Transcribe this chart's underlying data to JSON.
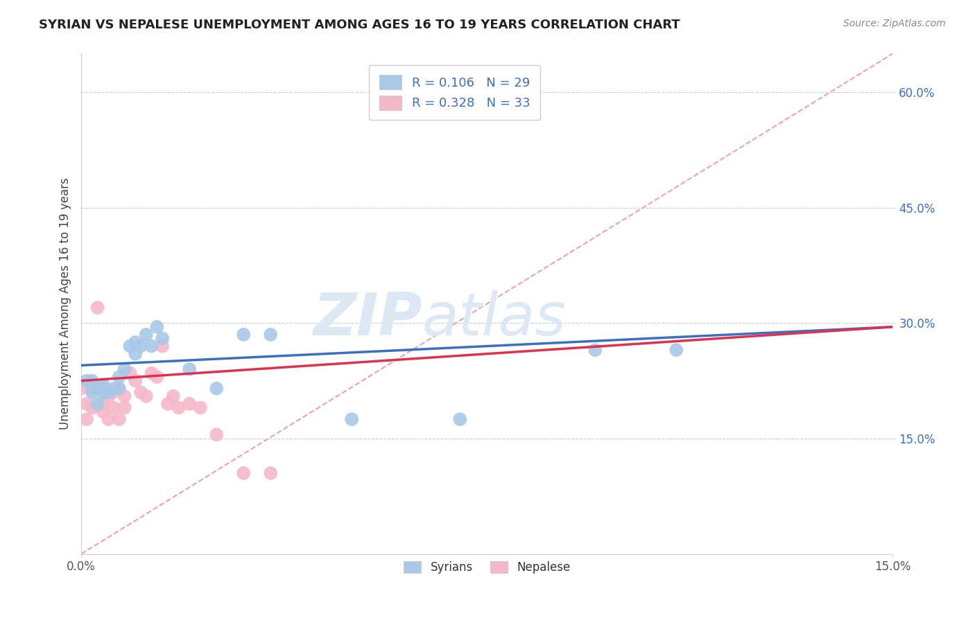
{
  "title": "SYRIAN VS NEPALESE UNEMPLOYMENT AMONG AGES 16 TO 19 YEARS CORRELATION CHART",
  "source": "Source: ZipAtlas.com",
  "ylabel": "Unemployment Among Ages 16 to 19 years",
  "xlim": [
    0.0,
    0.15
  ],
  "ylim": [
    0.0,
    0.65
  ],
  "xtick_positions": [
    0.0,
    0.15
  ],
  "xticklabels": [
    "0.0%",
    "15.0%"
  ],
  "ytick_positions": [
    0.15,
    0.3,
    0.45,
    0.6
  ],
  "yticklabels": [
    "15.0%",
    "30.0%",
    "45.0%",
    "60.0%"
  ],
  "syrian_R": "0.106",
  "syrian_N": "29",
  "nepalese_R": "0.328",
  "nepalese_N": "33",
  "syrian_color": "#a8c8e8",
  "nepalese_color": "#f5b8c8",
  "syrian_line_color": "#3a6fc4",
  "nepalese_line_color": "#e03050",
  "diagonal_color": "#f0a0b0",
  "background_color": "#ffffff",
  "grid_color": "#cccccc",
  "watermark_color": "#dce8f4",
  "legend_text_color": "#3a6fc4",
  "syrian_x": [
    0.001,
    0.002,
    0.002,
    0.003,
    0.003,
    0.004,
    0.004,
    0.005,
    0.005,
    0.006,
    0.007,
    0.007,
    0.008,
    0.009,
    0.01,
    0.01,
    0.011,
    0.012,
    0.013,
    0.014,
    0.015,
    0.02,
    0.025,
    0.03,
    0.035,
    0.05,
    0.07,
    0.095,
    0.11
  ],
  "syrian_y": [
    0.225,
    0.225,
    0.21,
    0.215,
    0.195,
    0.21,
    0.22,
    0.21,
    0.21,
    0.215,
    0.23,
    0.215,
    0.24,
    0.27,
    0.275,
    0.26,
    0.27,
    0.285,
    0.27,
    0.295,
    0.28,
    0.24,
    0.215,
    0.285,
    0.285,
    0.175,
    0.175,
    0.265,
    0.265
  ],
  "nepalese_x": [
    0.0,
    0.001,
    0.001,
    0.002,
    0.002,
    0.003,
    0.003,
    0.004,
    0.004,
    0.004,
    0.005,
    0.005,
    0.006,
    0.006,
    0.007,
    0.007,
    0.008,
    0.008,
    0.009,
    0.01,
    0.011,
    0.012,
    0.013,
    0.014,
    0.015,
    0.016,
    0.017,
    0.018,
    0.02,
    0.022,
    0.025,
    0.03,
    0.035
  ],
  "nepalese_y": [
    0.215,
    0.195,
    0.175,
    0.215,
    0.19,
    0.32,
    0.215,
    0.195,
    0.185,
    0.215,
    0.205,
    0.175,
    0.19,
    0.21,
    0.215,
    0.175,
    0.205,
    0.19,
    0.235,
    0.225,
    0.21,
    0.205,
    0.235,
    0.23,
    0.27,
    0.195,
    0.205,
    0.19,
    0.195,
    0.19,
    0.155,
    0.105,
    0.105
  ],
  "syrian_line_x0": 0.0,
  "syrian_line_y0": 0.245,
  "syrian_line_x1": 0.15,
  "syrian_line_y1": 0.295,
  "nepalese_line_x0": 0.0,
  "nepalese_line_y0": 0.225,
  "nepalese_line_x1": 0.15,
  "nepalese_line_y1": 0.295
}
